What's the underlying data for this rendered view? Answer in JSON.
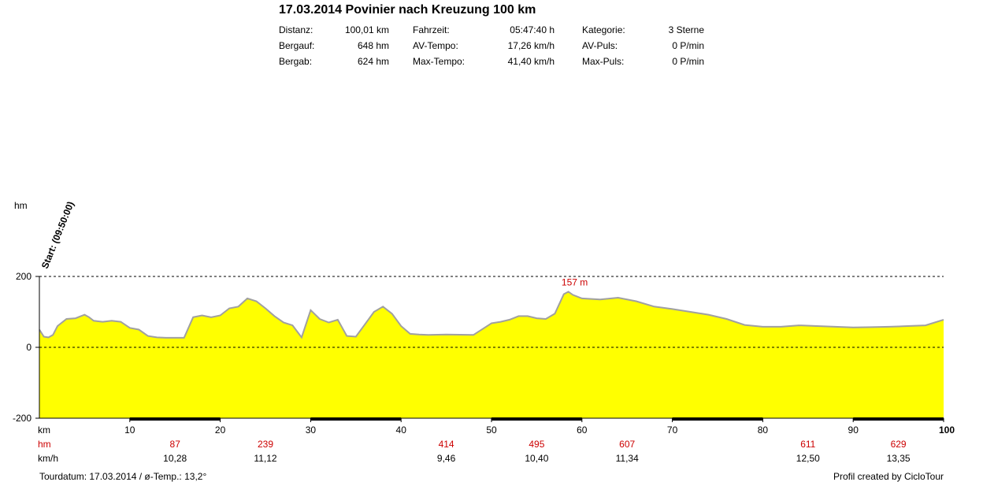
{
  "header": {
    "title": "17.03.2014 Povinier nach Kreuzung 100 km",
    "stats": [
      {
        "label": "Distanz:",
        "value": "100,01 km"
      },
      {
        "label": "Bergauf:",
        "value": "648 hm"
      },
      {
        "label": "Bergab:",
        "value": "624 hm"
      },
      {
        "label": "Fahrzeit:",
        "value": "05:47:40 h"
      },
      {
        "label": "AV-Tempo:",
        "value": "17,26 km/h"
      },
      {
        "label": "Max-Tempo:",
        "value": "41,40 km/h"
      },
      {
        "label": "Kategorie:",
        "value": "3 Sterne"
      },
      {
        "label": "AV-Puls:",
        "value": "0 P/min"
      },
      {
        "label": "Max-Puls:",
        "value": "0 P/min"
      }
    ]
  },
  "chart_data": {
    "type": "area",
    "ylabel": "hm",
    "xlabel": "km",
    "ylim": [
      -200,
      200
    ],
    "xlim": [
      0,
      100
    ],
    "y_ticks": [
      "200",
      "0",
      "-200"
    ],
    "x_ticks": [
      "10",
      "20",
      "30",
      "40",
      "50",
      "60",
      "70",
      "80",
      "90",
      "100"
    ],
    "start_label": "Start: (09:50:00)",
    "max_label": "157 m",
    "fill_color": "#ffff00",
    "line_color": "#a0a0a0",
    "grid": "dashed at 200 and 0",
    "x": [
      0,
      0.5,
      1,
      1.5,
      2,
      3,
      4,
      5,
      5.5,
      6,
      7,
      8,
      9,
      10,
      11,
      12,
      13,
      14,
      16,
      17,
      18,
      19,
      20,
      21,
      22,
      23,
      24,
      25,
      26,
      27,
      28,
      29,
      30,
      31,
      32,
      33,
      34,
      35,
      36,
      37,
      38,
      39,
      40,
      41,
      42,
      43,
      45,
      48,
      50,
      51,
      52,
      53,
      54,
      55,
      56,
      57,
      58,
      58.5,
      59,
      60,
      62,
      64,
      66,
      68,
      70,
      72,
      74,
      76,
      78,
      80,
      82,
      84,
      86,
      88,
      90,
      92,
      94,
      96,
      98,
      100
    ],
    "elevation": [
      50,
      30,
      28,
      35,
      60,
      80,
      82,
      92,
      85,
      75,
      72,
      75,
      72,
      55,
      50,
      32,
      28,
      27,
      27,
      85,
      90,
      85,
      90,
      110,
      115,
      138,
      130,
      110,
      88,
      70,
      62,
      28,
      105,
      80,
      70,
      78,
      32,
      30,
      65,
      100,
      115,
      95,
      60,
      38,
      36,
      35,
      36,
      35,
      68,
      72,
      78,
      88,
      88,
      82,
      80,
      95,
      150,
      157,
      148,
      138,
      135,
      140,
      130,
      115,
      108,
      100,
      92,
      80,
      63,
      58,
      58,
      62,
      60,
      58,
      56,
      57,
      58,
      60,
      62,
      78
    ],
    "hm_row": {
      "label": "hm",
      "values": [
        "87",
        "239",
        "414",
        "495",
        "607",
        "611",
        "629"
      ],
      "km": [
        10,
        20,
        40,
        50,
        60,
        80,
        90
      ]
    },
    "speed_row": {
      "label": "km/h",
      "values": [
        "10,28",
        "11,12",
        "9,46",
        "10,40",
        "11,34",
        "12,50",
        "13,35"
      ],
      "km": [
        10,
        20,
        40,
        50,
        60,
        80,
        90
      ]
    }
  },
  "footer": {
    "left": "Tourdatum: 17.03.2014  /  ø-Temp.: 13,2°",
    "right": "Profil created by CicloTour"
  }
}
